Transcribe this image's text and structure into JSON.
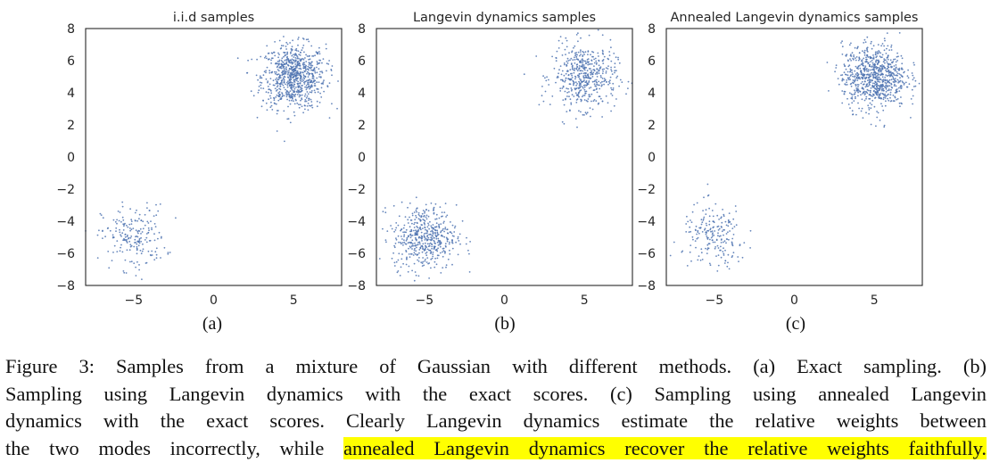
{
  "chart_data": [
    {
      "type": "scatter",
      "title": "i.i.d samples",
      "panel_label": "(a)",
      "xlim": [
        -8,
        8
      ],
      "ylim": [
        -8,
        8
      ],
      "xticks": [
        -5,
        0,
        5
      ],
      "yticks": [
        -8,
        -6,
        -4,
        -2,
        0,
        2,
        4,
        6,
        8
      ],
      "grid": false,
      "point_color": "#4c72b0",
      "series": [
        {
          "center": [
            5,
            5
          ],
          "std": 1,
          "count": 800
        },
        {
          "center": [
            -5,
            -5
          ],
          "std": 1,
          "count": 200
        }
      ]
    },
    {
      "type": "scatter",
      "title": "Langevin dynamics samples",
      "panel_label": "(b)",
      "xlim": [
        -8,
        8
      ],
      "ylim": [
        -8,
        8
      ],
      "xticks": [
        -5,
        0,
        5
      ],
      "yticks": [
        -8,
        -6,
        -4,
        -2,
        0,
        2,
        4,
        6,
        8
      ],
      "grid": false,
      "point_color": "#4c72b0",
      "series": [
        {
          "center": [
            5,
            5
          ],
          "std": 1,
          "count": 500
        },
        {
          "center": [
            -5,
            -5
          ],
          "std": 1,
          "count": 500
        }
      ]
    },
    {
      "type": "scatter",
      "title": "Annealed Langevin dynamics samples",
      "panel_label": "(c)",
      "xlim": [
        -8,
        8
      ],
      "ylim": [
        -8,
        8
      ],
      "xticks": [
        -5,
        0,
        5
      ],
      "yticks": [
        -8,
        -6,
        -4,
        -2,
        0,
        2,
        4,
        6,
        8
      ],
      "grid": false,
      "point_color": "#4c72b0",
      "series": [
        {
          "center": [
            5,
            5
          ],
          "std": 1,
          "count": 800
        },
        {
          "center": [
            -5,
            -5
          ],
          "std": 1,
          "count": 200
        }
      ]
    }
  ],
  "caption": {
    "line1": "Figure 3: Samples from a mixture of Gaussian with different methods. (a) Exact sampling. (b)",
    "line2": "Sampling using Langevin dynamics with the exact scores. (c) Sampling using annealed Langevin",
    "line3": "dynamics with the exact scores. Clearly Langevin dynamics estimate the relative weights between",
    "line4_plain": "the two modes incorrectly, while ",
    "line4_highlight": "annealed Langevin dynamics recover the relative weights faithfully."
  },
  "highlight_color": "#ffff00"
}
